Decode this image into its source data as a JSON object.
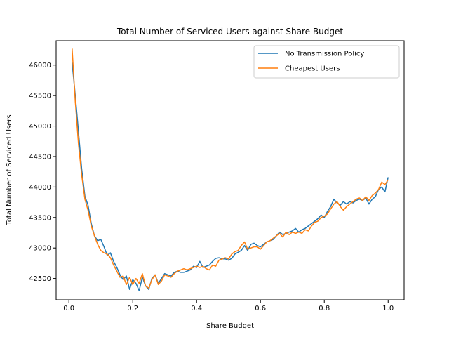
{
  "chart_data": {
    "type": "line",
    "title": "Total Number of Serviced Users against Share Budget",
    "xlabel": "Share Budget",
    "ylabel": "Total Number of Serviced Users",
    "xlim": [
      -0.04,
      1.05
    ],
    "ylim": [
      42150,
      46400
    ],
    "xticks": [
      0.0,
      0.2,
      0.4,
      0.6,
      0.8,
      1.0
    ],
    "xtick_labels": [
      "0.0",
      "0.2",
      "0.4",
      "0.6",
      "0.8",
      "1.0"
    ],
    "yticks": [
      42500,
      43000,
      43500,
      44000,
      44500,
      45000,
      45500,
      46000
    ],
    "ytick_labels": [
      "42500",
      "43000",
      "43500",
      "44000",
      "44500",
      "45000",
      "45500",
      "46000"
    ],
    "grid": false,
    "legend_position": "top-right",
    "x": [
      0.01,
      0.02,
      0.03,
      0.04,
      0.05,
      0.06,
      0.07,
      0.08,
      0.09,
      0.1,
      0.11,
      0.12,
      0.13,
      0.14,
      0.15,
      0.16,
      0.17,
      0.18,
      0.19,
      0.2,
      0.21,
      0.22,
      0.23,
      0.24,
      0.25,
      0.26,
      0.27,
      0.28,
      0.29,
      0.3,
      0.31,
      0.32,
      0.33,
      0.34,
      0.35,
      0.36,
      0.37,
      0.38,
      0.39,
      0.4,
      0.41,
      0.42,
      0.43,
      0.44,
      0.45,
      0.46,
      0.47,
      0.48,
      0.49,
      0.5,
      0.51,
      0.52,
      0.53,
      0.54,
      0.55,
      0.56,
      0.57,
      0.58,
      0.59,
      0.6,
      0.61,
      0.62,
      0.63,
      0.64,
      0.65,
      0.66,
      0.67,
      0.68,
      0.69,
      0.7,
      0.71,
      0.72,
      0.73,
      0.74,
      0.75,
      0.76,
      0.77,
      0.78,
      0.79,
      0.8,
      0.81,
      0.82,
      0.83,
      0.84,
      0.85,
      0.86,
      0.87,
      0.88,
      0.89,
      0.9,
      0.91,
      0.92,
      0.93,
      0.94,
      0.95,
      0.96,
      0.97,
      0.98,
      0.99,
      1.0
    ],
    "series": [
      {
        "name": "No Transmission Policy",
        "color": "#1f77b4",
        "values": [
          46040,
          45500,
          44900,
          44300,
          43850,
          43700,
          43400,
          43200,
          43120,
          43140,
          43020,
          42880,
          42920,
          42780,
          42680,
          42560,
          42480,
          42540,
          42320,
          42480,
          42420,
          42300,
          42520,
          42380,
          42320,
          42500,
          42560,
          42420,
          42500,
          42580,
          42560,
          42540,
          42600,
          42620,
          42600,
          42600,
          42620,
          42640,
          42700,
          42680,
          42780,
          42680,
          42700,
          42720,
          42780,
          42830,
          42840,
          42820,
          42820,
          42800,
          42830,
          42900,
          42930,
          42960,
          43040,
          42960,
          43060,
          43080,
          43040,
          43020,
          43060,
          43100,
          43120,
          43140,
          43200,
          43260,
          43220,
          43240,
          43260,
          43280,
          43320,
          43260,
          43300,
          43320,
          43360,
          43400,
          43440,
          43480,
          43540,
          43500,
          43600,
          43680,
          43800,
          43740,
          43700,
          43760,
          43720,
          43760,
          43740,
          43780,
          43800,
          43780,
          43820,
          43720,
          43800,
          43840,
          43960,
          44000,
          43920,
          44160
        ]
      },
      {
        "name": "Cheapest Users",
        "color": "#ff7f0e",
        "values": [
          46270,
          45400,
          44700,
          44200,
          43800,
          43620,
          43360,
          43200,
          43060,
          42960,
          42920,
          42900,
          42840,
          42720,
          42620,
          42520,
          42540,
          42400,
          42520,
          42400,
          42500,
          42420,
          42580,
          42380,
          42340,
          42480,
          42560,
          42400,
          42460,
          42560,
          42540,
          42520,
          42580,
          42620,
          42640,
          42660,
          42640,
          42660,
          42680,
          42700,
          42680,
          42700,
          42660,
          42640,
          42720,
          42700,
          42800,
          42820,
          42840,
          42820,
          42900,
          42940,
          42960,
          43040,
          43100,
          42980,
          43000,
          43020,
          43020,
          42980,
          43040,
          43100,
          43120,
          43160,
          43200,
          43240,
          43180,
          43260,
          43220,
          43260,
          43240,
          43260,
          43240,
          43300,
          43280,
          43360,
          43420,
          43440,
          43500,
          43520,
          43560,
          43640,
          43720,
          43760,
          43680,
          43620,
          43680,
          43720,
          43760,
          43800,
          43820,
          43780,
          43840,
          43780,
          43860,
          43900,
          43960,
          44080,
          44040,
          44120
        ]
      }
    ]
  }
}
